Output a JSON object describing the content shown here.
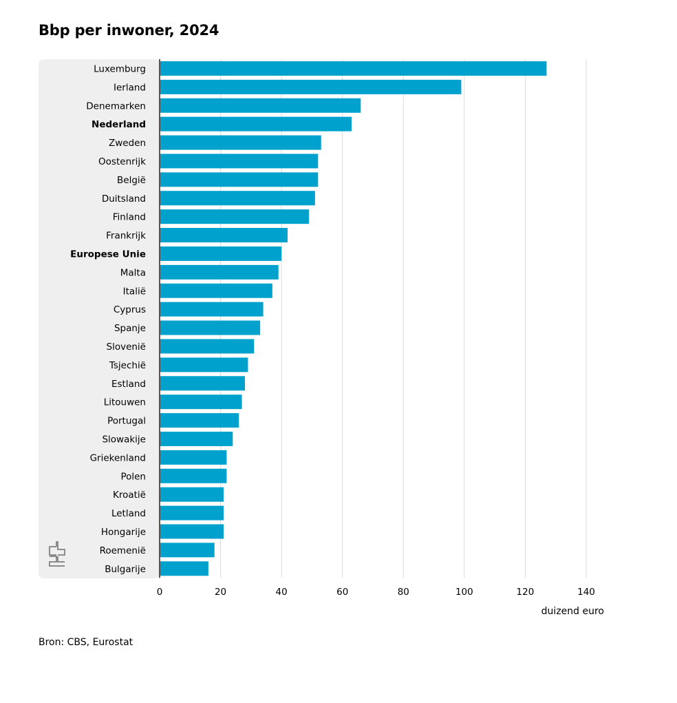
{
  "title": "Bbp per inwoner, 2024",
  "source": "Bron: CBS, Eurostat",
  "logo_text": "cbs",
  "colors": {
    "bar": "#00A1CD",
    "panel": "#EFEFEF",
    "grid": "#D9D9D9",
    "axis": "#555555"
  },
  "chart_data": {
    "type": "bar",
    "orientation": "horizontal",
    "title": "Bbp per inwoner, 2024",
    "xlabel": "duizend euro",
    "ylabel": "",
    "xlim": [
      0,
      140
    ],
    "xticks": [
      0,
      20,
      40,
      60,
      80,
      100,
      120,
      140
    ],
    "grid": true,
    "highlighted_categories": [
      "Nederland",
      "Europese Unie"
    ],
    "categories": [
      "Luxemburg",
      "Ierland",
      "Denemarken",
      "Nederland",
      "Zweden",
      "Oostenrijk",
      "België",
      "Duitsland",
      "Finland",
      "Frankrijk",
      "Europese Unie",
      "Malta",
      "Italië",
      "Cyprus",
      "Spanje",
      "Slovenië",
      "Tsjechië",
      "Estland",
      "Litouwen",
      "Portugal",
      "Slowakije",
      "Griekenland",
      "Polen",
      "Kroatië",
      "Letland",
      "Hongarije",
      "Roemenië",
      "Bulgarije"
    ],
    "values": [
      127,
      99,
      66,
      63,
      53,
      52,
      52,
      51,
      49,
      42,
      40,
      39,
      37,
      34,
      33,
      31,
      29,
      28,
      27,
      26,
      24,
      22,
      22,
      21,
      21,
      21,
      18,
      16
    ]
  }
}
